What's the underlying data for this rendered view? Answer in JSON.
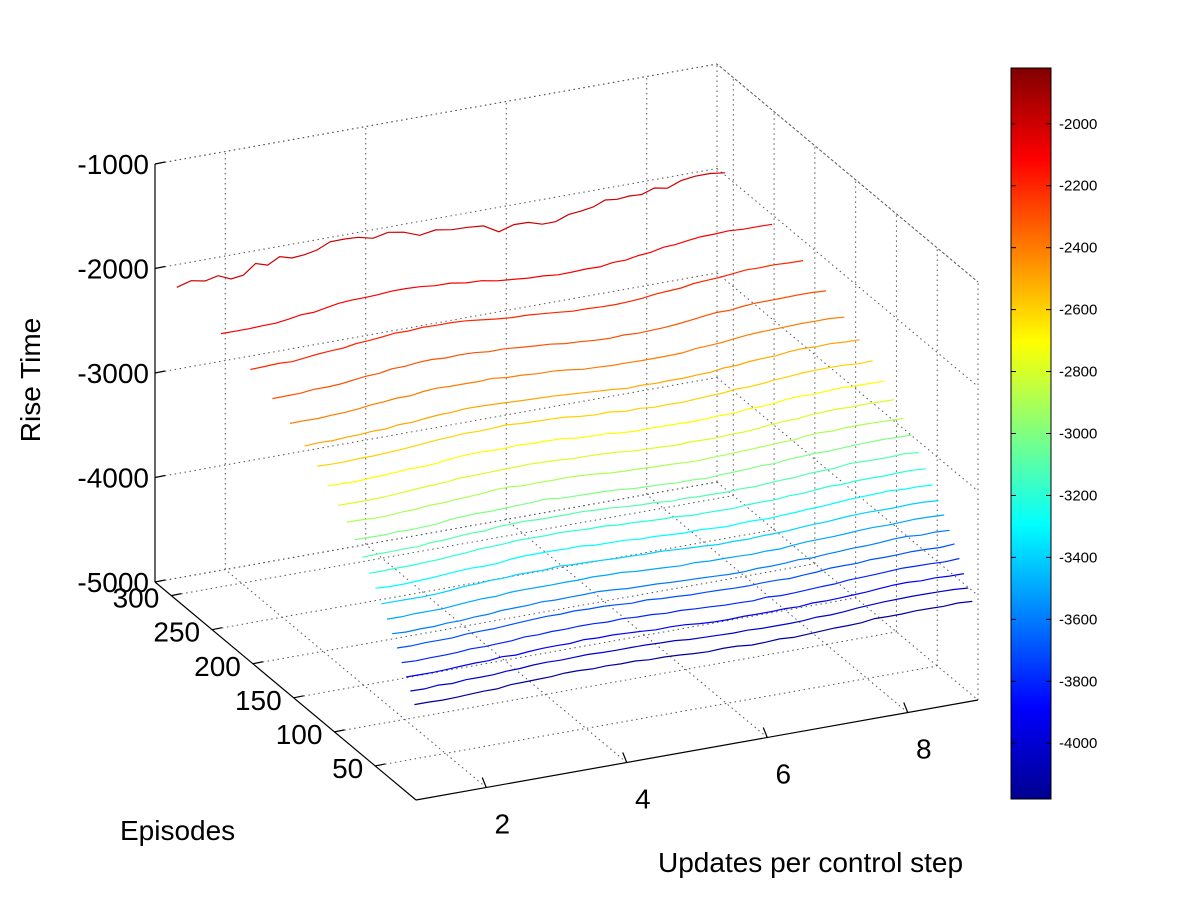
{
  "chart_data": {
    "type": "contour3d",
    "zlabel": "Rise Time",
    "ylabel": "Episodes",
    "xlabel": "Updates per control step",
    "z_ticks": [
      -1000,
      -2000,
      -3000,
      -4000,
      -5000
    ],
    "y_ticks": [
      300,
      250,
      200,
      150,
      100,
      50
    ],
    "x_ticks": [
      2,
      4,
      6,
      8
    ],
    "zlim": [
      -5000,
      -1000
    ],
    "ylim": [
      0,
      320
    ],
    "xlim": [
      1,
      9
    ],
    "grid": true,
    "colormap": "jet",
    "colorbar": {
      "location": "right",
      "min": -4180,
      "max": -1820,
      "ticks": [
        -2000,
        -2200,
        -2400,
        -2600,
        -2800,
        -3000,
        -3200,
        -3400,
        -3600,
        -3800,
        -4000
      ]
    },
    "contour_levels": [
      -4100,
      -4000,
      -3900,
      -3800,
      -3700,
      -3600,
      -3500,
      -3400,
      -3300,
      -3200,
      -3100,
      -3000,
      -2900,
      -2800,
      -2700,
      -2600,
      -2500,
      -2400,
      -2300,
      -2200,
      -2100,
      -2000,
      -1900,
      -1850
    ]
  }
}
